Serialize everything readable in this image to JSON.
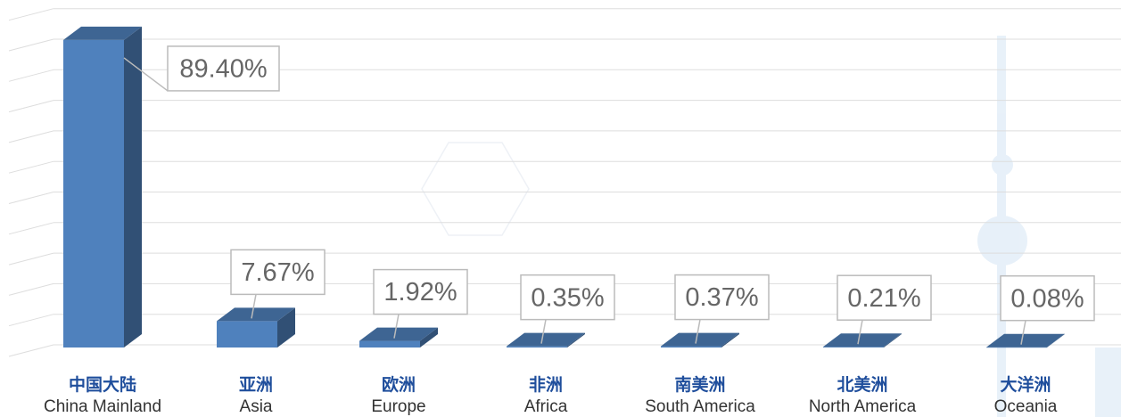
{
  "chart_data": {
    "type": "bar3d",
    "categories": [
      "中国大陆",
      "亚洲",
      "欧洲",
      "非洲",
      "南美洲",
      "北美洲",
      "大洋洲"
    ],
    "category_subtitles": [
      "China Mainland",
      "Asia",
      "Europe",
      "Africa",
      "South America",
      "North America",
      "Oceania"
    ],
    "values": [
      89.4,
      7.67,
      1.92,
      0.35,
      0.37,
      0.21,
      0.08
    ],
    "value_labels": [
      "89.40%",
      "7.67%",
      "1.92%",
      "0.35%",
      "0.37%",
      "0.21%",
      "0.08%"
    ],
    "color": "#4f81bd",
    "ylim": [
      0,
      100
    ],
    "grid": true
  }
}
